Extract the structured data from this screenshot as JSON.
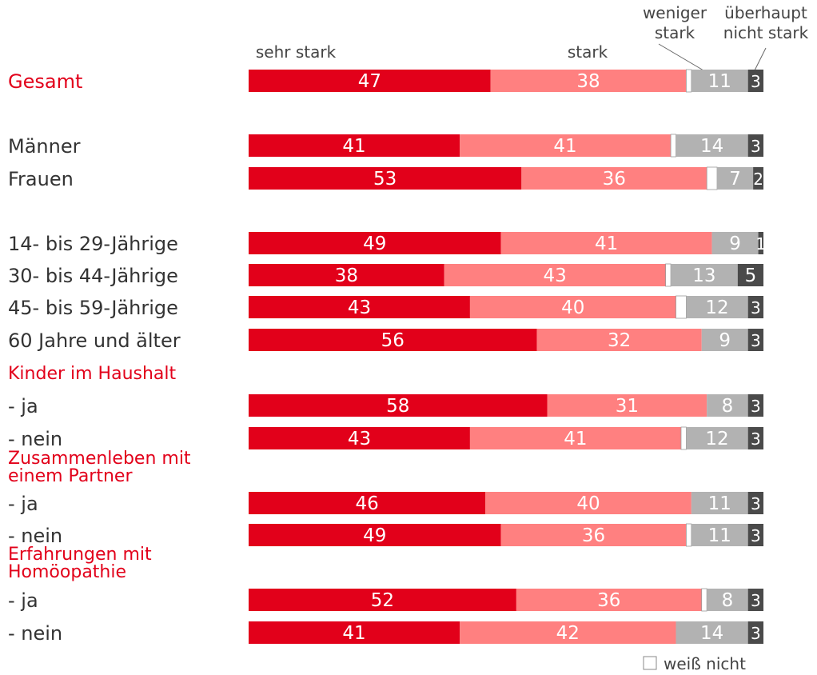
{
  "chart_data": {
    "type": "bar",
    "orientation": "horizontal",
    "stacked": true,
    "series": [
      {
        "name": "sehr stark",
        "color": "#e2001a"
      },
      {
        "name": "stark",
        "color": "#ff8080"
      },
      {
        "name": "weiß nicht",
        "color": "#ffffff"
      },
      {
        "name": "weniger stark",
        "color": "#b2b2b2"
      },
      {
        "name": "überhaupt nicht stark",
        "color": "#4a4a4a"
      }
    ],
    "legend": {
      "sehr_stark": "sehr stark",
      "stark": "stark",
      "weniger_stark": [
        "weniger",
        "stark"
      ],
      "ueberhaupt": [
        "überhaupt",
        "nicht stark"
      ],
      "weiss_nicht": "weiß nicht"
    },
    "rows": [
      {
        "label": "Gesamt",
        "highlight": true,
        "values": [
          47,
          38,
          1,
          11,
          3
        ]
      },
      {
        "label": "Männer",
        "values": [
          41,
          41,
          1,
          14,
          3
        ]
      },
      {
        "label": "Frauen",
        "values": [
          53,
          36,
          2,
          7,
          2
        ]
      },
      {
        "label": "14- bis 29-Jährige",
        "values": [
          49,
          41,
          0,
          9,
          1
        ]
      },
      {
        "label": "30- bis 44-Jährige",
        "values": [
          38,
          43,
          1,
          13,
          5
        ]
      },
      {
        "label": "45- bis 59-Jährige",
        "values": [
          43,
          40,
          2,
          12,
          3
        ]
      },
      {
        "label": "60 Jahre und älter",
        "values": [
          56,
          32,
          0,
          9,
          3
        ]
      },
      {
        "label": "- ja",
        "values": [
          58,
          31,
          0,
          8,
          3
        ]
      },
      {
        "label": "- nein",
        "values": [
          43,
          41,
          1,
          12,
          3
        ]
      },
      {
        "label": "- ja",
        "values": [
          46,
          40,
          0,
          11,
          3
        ]
      },
      {
        "label": "- nein",
        "values": [
          49,
          36,
          1,
          11,
          3
        ]
      },
      {
        "label": "- ja",
        "values": [
          52,
          36,
          1,
          8,
          3
        ]
      },
      {
        "label": "- nein",
        "values": [
          41,
          42,
          0,
          14,
          3
        ]
      }
    ],
    "group_headings": [
      {
        "lines": [
          "Kinder im Haushalt"
        ]
      },
      {
        "lines": [
          "Zusammenleben mit",
          "einem Partner"
        ]
      },
      {
        "lines": [
          "Erfahrungen mit",
          "Homöopathie"
        ]
      }
    ],
    "xlim": [
      0,
      100
    ]
  }
}
